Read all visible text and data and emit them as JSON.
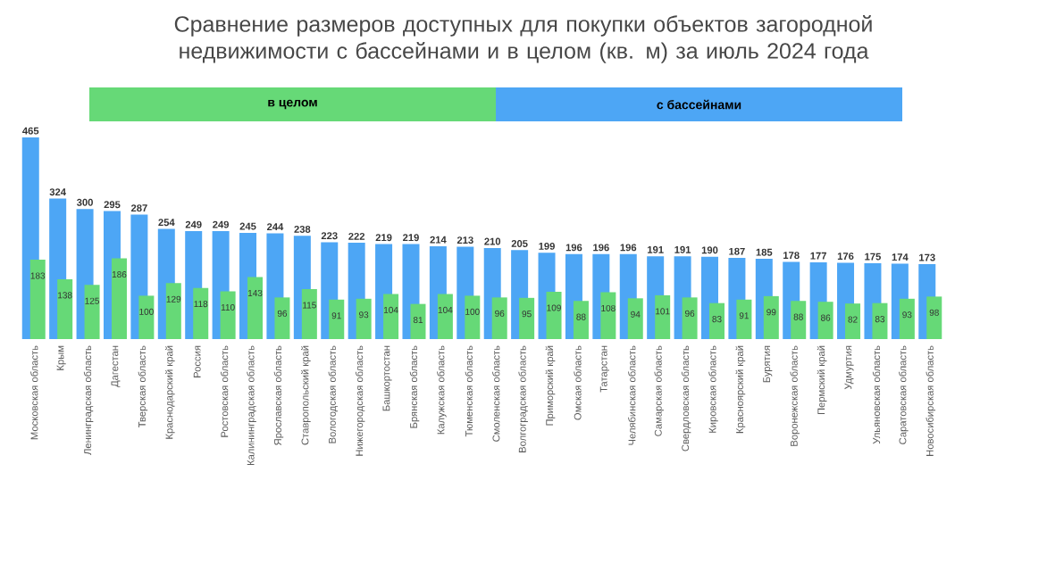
{
  "chart_data": {
    "type": "bar",
    "title": "Сравнение размеров доступных для покупки объектов загородной недвижимости с бассейнами и в целом (кв. м) за июль 2024 года",
    "categories": [
      "Московская область",
      "Крым",
      "Ленинградская область",
      "Дагестан",
      "Тверская область",
      "Краснодарский край",
      "Россия",
      "Ростовская область",
      "Калининградская область",
      "Ярославская область",
      "Ставропольский край",
      "Вологодская область",
      "Нижегородская область",
      "Башкортостан",
      "Брянская область",
      "Калужская область",
      "Тюменская область",
      "Смоленская область",
      "Волгоградская область",
      "Приморский край",
      "Омская область",
      "Татарстан",
      "Челябинская область",
      "Самарская область",
      "Свердловская область",
      "Кировская область",
      "Красноярский край",
      "Бурятия",
      "Воронежская область",
      "Пермский край",
      "Удмуртия",
      "Ульяновская область",
      "Саратовская область",
      "Новосибирская область"
    ],
    "series": [
      {
        "name": "в целом",
        "color": "#66d977",
        "values": [
          183,
          138,
          125,
          186,
          100,
          129,
          118,
          110,
          143,
          96,
          115,
          91,
          93,
          104,
          81,
          104,
          100,
          96,
          95,
          109,
          88,
          108,
          94,
          101,
          96,
          83,
          91,
          99,
          88,
          86,
          82,
          83,
          93,
          98
        ]
      },
      {
        "name": "с бассейнами",
        "color": "#4da6f5",
        "values": [
          465,
          324,
          300,
          295,
          287,
          254,
          249,
          249,
          245,
          244,
          238,
          223,
          222,
          219,
          219,
          214,
          213,
          210,
          205,
          199,
          196,
          196,
          196,
          191,
          191,
          190,
          187,
          185,
          178,
          177,
          176,
          175,
          174,
          173
        ]
      }
    ],
    "data_labels": true,
    "legend": "top"
  }
}
